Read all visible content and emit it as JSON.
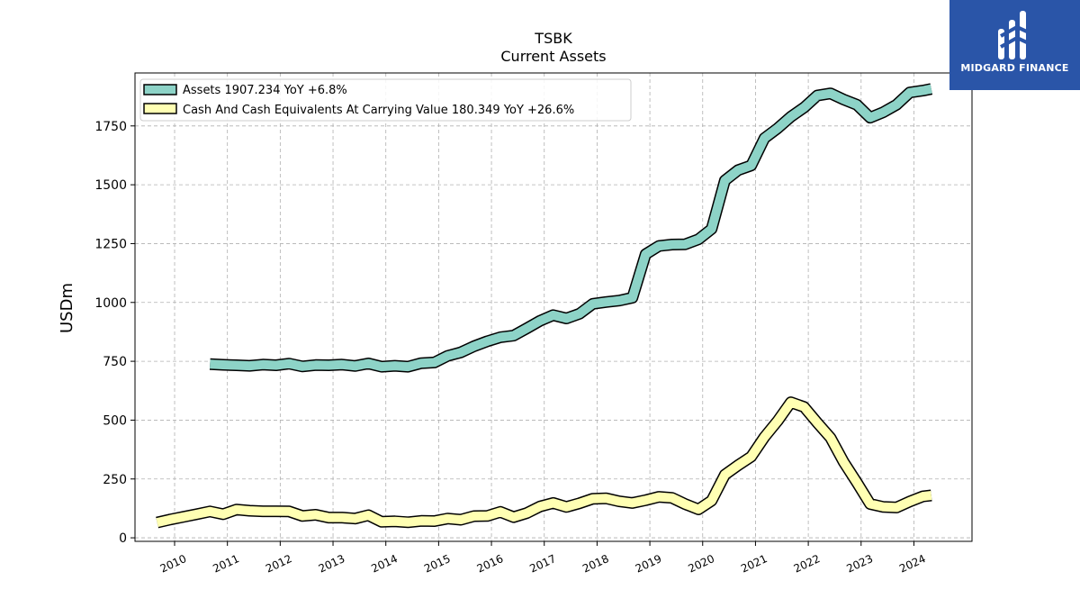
{
  "header": {
    "logo_text": "MIDGARD FINANCE"
  },
  "colors": {
    "assets": "#8dd3c7",
    "cash": "#ffffb3",
    "outline": "#000000",
    "logo_bg": "#2a55a8"
  },
  "chart_data": {
    "type": "line",
    "title": "TSBK",
    "subtitle": "Current  Assets",
    "xlabel": "",
    "ylabel": "USDm",
    "ylim": [
      -15,
      1975
    ],
    "xlim": [
      2009.25,
      2025.1
    ],
    "yticks": [
      0,
      250,
      500,
      750,
      1000,
      1250,
      1500,
      1750
    ],
    "xticks": [
      2010,
      2011,
      2012,
      2013,
      2014,
      2015,
      2016,
      2017,
      2018,
      2019,
      2020,
      2021,
      2022,
      2023,
      2024
    ],
    "grid": true,
    "legend_position": "top-left",
    "series": [
      {
        "name": "Assets",
        "legend_label": "Assets  1907.234 YoY +6.8%",
        "color_key": "assets",
        "x": [
          2010.67,
          2010.92,
          2011.17,
          2011.42,
          2011.67,
          2011.92,
          2012.17,
          2012.42,
          2012.67,
          2012.92,
          2013.17,
          2013.42,
          2013.67,
          2013.92,
          2014.17,
          2014.42,
          2014.67,
          2014.92,
          2015.17,
          2015.42,
          2015.67,
          2015.92,
          2016.17,
          2016.42,
          2016.67,
          2016.92,
          2017.17,
          2017.42,
          2017.67,
          2017.92,
          2018.17,
          2018.42,
          2018.67,
          2018.92,
          2019.17,
          2019.42,
          2019.67,
          2019.92,
          2020.17,
          2020.42,
          2020.67,
          2020.92,
          2021.17,
          2021.42,
          2021.67,
          2021.92,
          2022.17,
          2022.42,
          2022.67,
          2022.92,
          2023.17,
          2023.42,
          2023.67,
          2023.92,
          2024.17,
          2024.33
        ],
        "values": [
          738,
          735,
          733,
          731,
          736,
          733,
          740,
          728,
          734,
          733,
          736,
          730,
          741,
          727,
          731,
          727,
          742,
          745,
          773,
          788,
          814,
          835,
          852,
          859,
          890,
          922,
          946,
          932,
          952,
          994,
          1002,
          1008,
          1020,
          1205,
          1240,
          1246,
          1247,
          1268,
          1312,
          1518,
          1562,
          1582,
          1698,
          1740,
          1789,
          1828,
          1879,
          1888,
          1862,
          1840,
          1785,
          1808,
          1840,
          1892,
          1900,
          1907.234
        ]
      },
      {
        "name": "Cash And Cash Equivalents At Carrying Value",
        "legend_label": "Cash And Cash Equivalents At Carrying Value  180.349 YoY +26.6%",
        "color_key": "cash",
        "x": [
          2009.67,
          2009.92,
          2010.17,
          2010.42,
          2010.67,
          2010.92,
          2011.17,
          2011.42,
          2011.67,
          2011.92,
          2012.17,
          2012.42,
          2012.67,
          2012.92,
          2013.17,
          2013.42,
          2013.67,
          2013.92,
          2014.17,
          2014.42,
          2014.67,
          2014.92,
          2015.17,
          2015.42,
          2015.67,
          2015.92,
          2016.17,
          2016.42,
          2016.67,
          2016.92,
          2017.17,
          2017.42,
          2017.67,
          2017.92,
          2018.17,
          2018.42,
          2018.67,
          2018.92,
          2019.17,
          2019.42,
          2019.67,
          2019.92,
          2020.17,
          2020.42,
          2020.67,
          2020.92,
          2021.17,
          2021.42,
          2021.67,
          2021.92,
          2022.17,
          2022.42,
          2022.67,
          2022.92,
          2023.17,
          2023.42,
          2023.67,
          2023.92,
          2024.17,
          2024.33
        ],
        "values": [
          65,
          78,
          89,
          100,
          112,
          100,
          120,
          115,
          113,
          113,
          112,
          93,
          98,
          86,
          86,
          82,
          96,
          68,
          70,
          66,
          72,
          71,
          82,
          77,
          92,
          93,
          110,
          88,
          105,
          133,
          148,
          131,
          147,
          166,
          168,
          155,
          148,
          160,
          174,
          170,
          143,
          121,
          158,
          268,
          308,
          345,
          428,
          497,
          576,
          556,
          489,
          425,
          322,
          235,
          144,
          131,
          129,
          154,
          176,
          180.349
        ]
      }
    ]
  }
}
